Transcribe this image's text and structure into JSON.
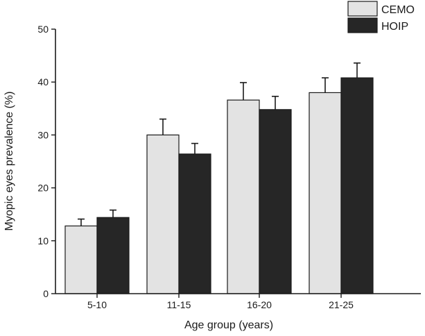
{
  "chart_data": {
    "type": "bar",
    "title": "",
    "xlabel": "Age group (years)",
    "ylabel": "Myopic eyes prevalence (%)",
    "categories": [
      "5-10",
      "11-15",
      "16-20",
      "21-25"
    ],
    "ylim": [
      0,
      50
    ],
    "yticks": [
      0,
      10,
      20,
      30,
      40,
      50
    ],
    "legend_position": "top-right",
    "grid": false,
    "series": [
      {
        "name": "CEMO",
        "color": "#e3e3e3",
        "values": [
          12.8,
          30.0,
          36.6,
          38.0
        ],
        "errors": [
          1.3,
          3.0,
          3.3,
          2.8
        ]
      },
      {
        "name": "HOIP",
        "color": "#262626",
        "values": [
          14.4,
          26.4,
          34.8,
          40.8
        ],
        "errors": [
          1.4,
          2.0,
          2.5,
          2.8
        ]
      }
    ]
  }
}
